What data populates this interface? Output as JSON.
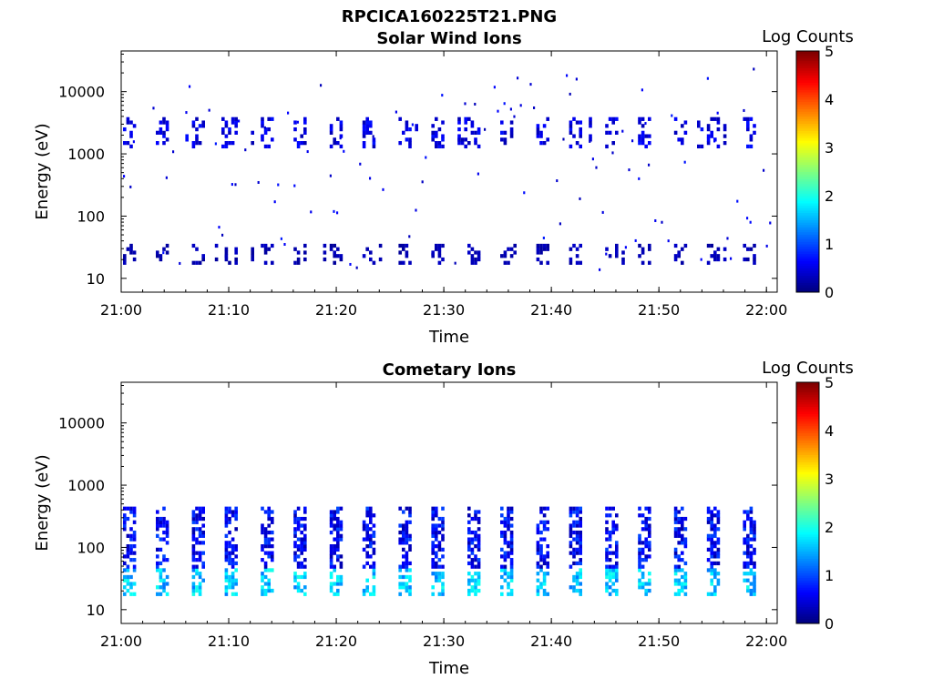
{
  "figure_title": "RPCICA160225T21.PNG",
  "chart_data": [
    {
      "type": "heatmap",
      "title": "Solar Wind Ions",
      "xlabel": "Time",
      "ylabel": "Energy (eV)",
      "x_ticks": [
        "21:00",
        "21:10",
        "21:20",
        "21:30",
        "21:40",
        "21:50",
        "22:00"
      ],
      "y_ticks": [
        "10",
        "100",
        "1000",
        "10000"
      ],
      "y_scale": "log",
      "xlim": [
        "21:00",
        "22:01"
      ],
      "ylim": [
        6,
        45000
      ],
      "colorbar": {
        "label": "Log Counts",
        "min": 0,
        "max": 5,
        "ticks": [
          "0",
          "1",
          "2",
          "3",
          "4",
          "5"
        ],
        "colormap": "jet"
      },
      "description_of_values": "Sparse low counts (log counts ~0-1): clusters at 1000-3000 eV and 15-35 eV recurring roughly every 3 minutes",
      "bands": [
        {
          "energy_range": [
            1200,
            3500
          ],
          "log_counts": 0.6,
          "period_min": 3.2
        },
        {
          "energy_range": [
            15,
            35
          ],
          "log_counts": 0.3,
          "period_min": 3.2
        }
      ]
    },
    {
      "type": "heatmap",
      "title": "Cometary Ions",
      "xlabel": "Time",
      "ylabel": "Energy (eV)",
      "x_ticks": [
        "21:00",
        "21:10",
        "21:20",
        "21:30",
        "21:40",
        "21:50",
        "22:00"
      ],
      "y_ticks": [
        "10",
        "100",
        "1000",
        "10000"
      ],
      "y_scale": "log",
      "xlim": [
        "21:00",
        "22:01"
      ],
      "ylim": [
        6,
        45000
      ],
      "colorbar": {
        "label": "Log Counts",
        "min": 0,
        "max": 5,
        "ticks": [
          "0",
          "1",
          "2",
          "3",
          "4",
          "5"
        ],
        "colormap": "jet"
      },
      "description_of_values": "Recurring columns from ~15 to ~300 eV every ~3 minutes, peak log counts ~1.5-2 near 20-30 eV",
      "bands": [
        {
          "energy_range": [
            15,
            400
          ],
          "log_counts": 1.7,
          "period_min": 3.2
        }
      ]
    }
  ]
}
